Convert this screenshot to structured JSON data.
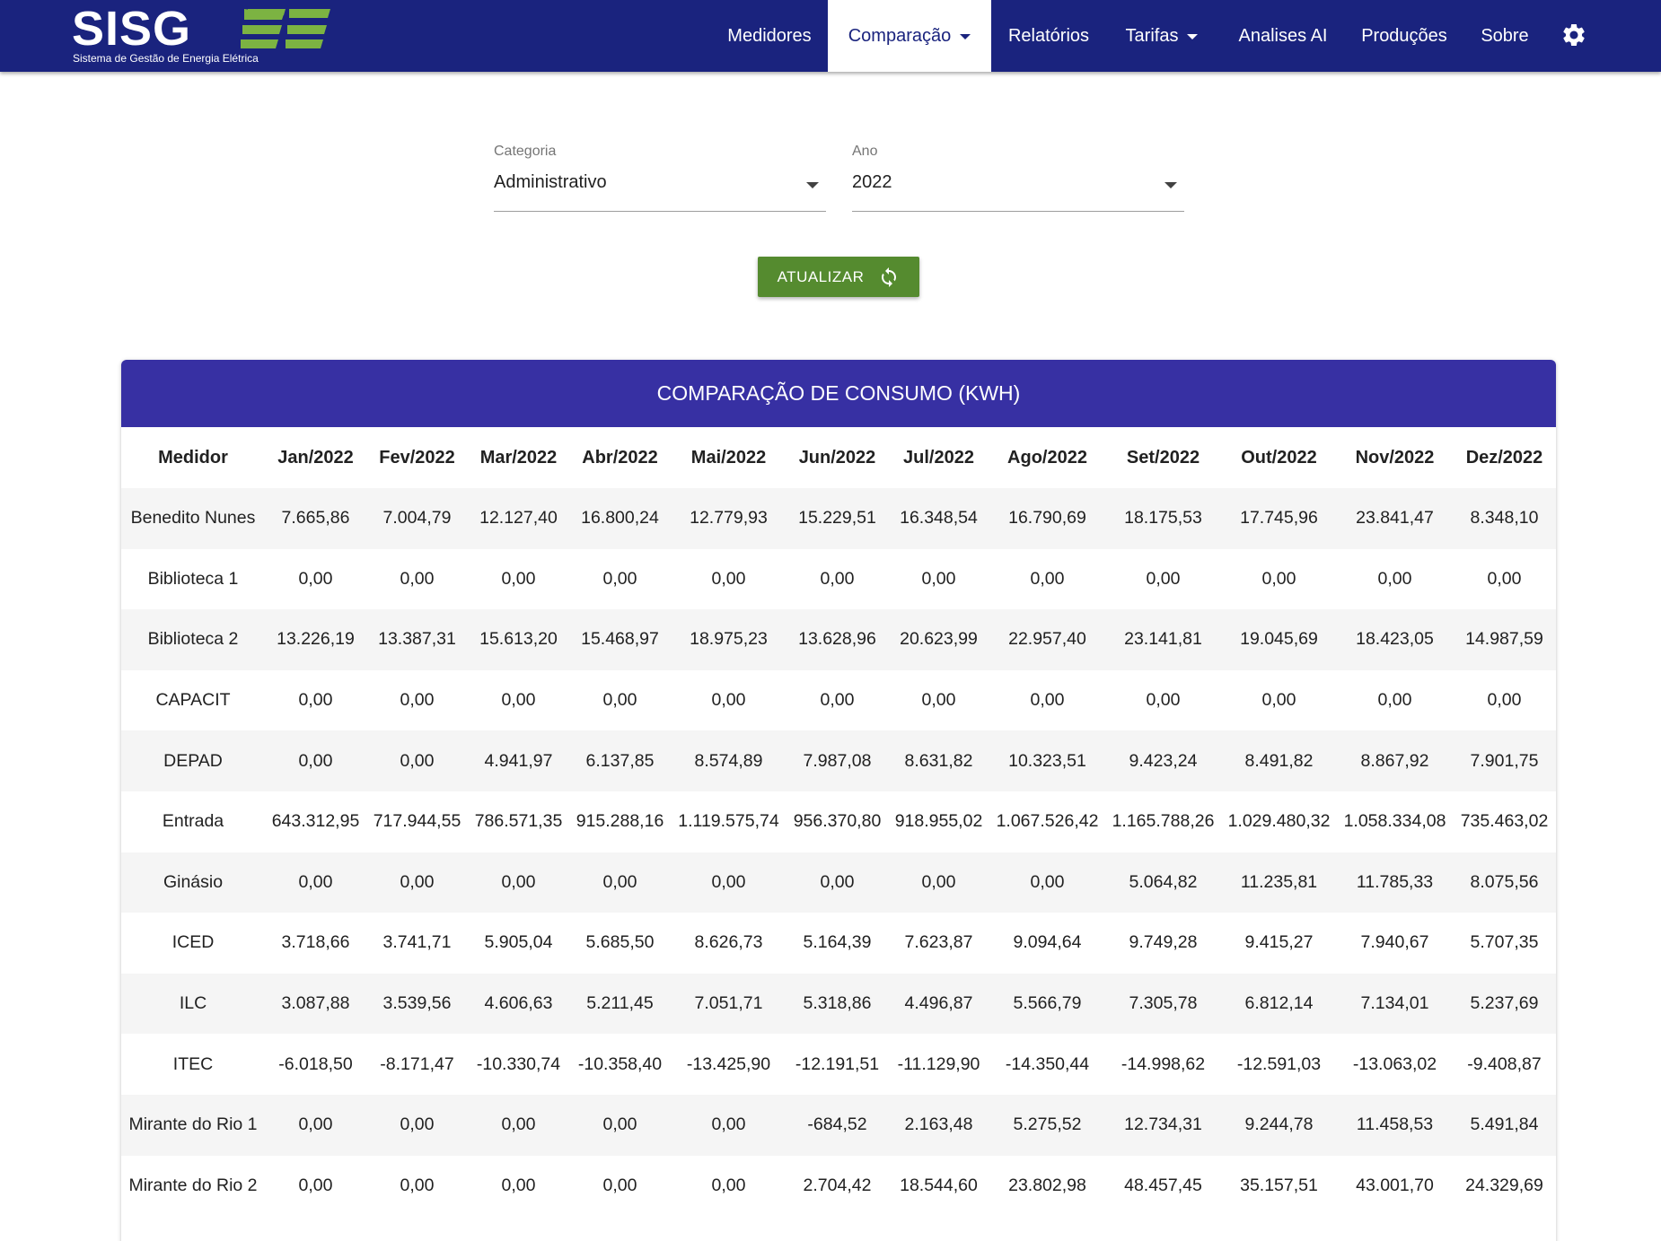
{
  "app": {
    "logo_text": "SISG",
    "logo_subtitle": "Sistema de Gestão de Energia Elétrica",
    "brand_color": "#1a237e",
    "accent_color": "#7cb342"
  },
  "nav": {
    "medidores": "Medidores",
    "comparacao": "Comparação",
    "relatorios": "Relatórios",
    "tarifas": "Tarifas",
    "analises": "Analises AI",
    "producoes": "Produções",
    "sobre": "Sobre",
    "settings_icon": "gear-icon"
  },
  "filters": {
    "categoria_label": "Categoria",
    "categoria_value": "Administrativo",
    "ano_label": "Ano",
    "ano_value": "2022"
  },
  "actions": {
    "update_label": "ATUALIZAR",
    "update_icon": "refresh-icon"
  },
  "table": {
    "title": "COMPARAÇÃO DE CONSUMO (KWH)",
    "columns": [
      "Medidor",
      "Jan/2022",
      "Fev/2022",
      "Mar/2022",
      "Abr/2022",
      "Mai/2022",
      "Jun/2022",
      "Jul/2022",
      "Ago/2022",
      "Set/2022",
      "Out/2022",
      "Nov/2022",
      "Dez/2022"
    ],
    "rows": [
      [
        "Benedito Nunes",
        "7.665,86",
        "7.004,79",
        "12.127,40",
        "16.800,24",
        "12.779,93",
        "15.229,51",
        "16.348,54",
        "16.790,69",
        "18.175,53",
        "17.745,96",
        "23.841,47",
        "8.348,10"
      ],
      [
        "Biblioteca 1",
        "0,00",
        "0,00",
        "0,00",
        "0,00",
        "0,00",
        "0,00",
        "0,00",
        "0,00",
        "0,00",
        "0,00",
        "0,00",
        "0,00"
      ],
      [
        "Biblioteca 2",
        "13.226,19",
        "13.387,31",
        "15.613,20",
        "15.468,97",
        "18.975,23",
        "13.628,96",
        "20.623,99",
        "22.957,40",
        "23.141,81",
        "19.045,69",
        "18.423,05",
        "14.987,59"
      ],
      [
        "CAPACIT",
        "0,00",
        "0,00",
        "0,00",
        "0,00",
        "0,00",
        "0,00",
        "0,00",
        "0,00",
        "0,00",
        "0,00",
        "0,00",
        "0,00"
      ],
      [
        "DEPAD",
        "0,00",
        "0,00",
        "4.941,97",
        "6.137,85",
        "8.574,89",
        "7.987,08",
        "8.631,82",
        "10.323,51",
        "9.423,24",
        "8.491,82",
        "8.867,92",
        "7.901,75"
      ],
      [
        "Entrada",
        "643.312,95",
        "717.944,55",
        "786.571,35",
        "915.288,16",
        "1.119.575,74",
        "956.370,80",
        "918.955,02",
        "1.067.526,42",
        "1.165.788,26",
        "1.029.480,32",
        "1.058.334,08",
        "735.463,02"
      ],
      [
        "Ginásio",
        "0,00",
        "0,00",
        "0,00",
        "0,00",
        "0,00",
        "0,00",
        "0,00",
        "0,00",
        "5.064,82",
        "11.235,81",
        "11.785,33",
        "8.075,56"
      ],
      [
        "ICED",
        "3.718,66",
        "3.741,71",
        "5.905,04",
        "5.685,50",
        "8.626,73",
        "5.164,39",
        "7.623,87",
        "9.094,64",
        "9.749,28",
        "9.415,27",
        "7.940,67",
        "5.707,35"
      ],
      [
        "ILC",
        "3.087,88",
        "3.539,56",
        "4.606,63",
        "5.211,45",
        "7.051,71",
        "5.318,86",
        "4.496,87",
        "5.566,79",
        "7.305,78",
        "6.812,14",
        "7.134,01",
        "5.237,69"
      ],
      [
        "ITEC",
        "-6.018,50",
        "-8.171,47",
        "-10.330,74",
        "-10.358,40",
        "-13.425,90",
        "-12.191,51",
        "-11.129,90",
        "-14.350,44",
        "-14.998,62",
        "-12.591,03",
        "-13.063,02",
        "-9.408,87"
      ],
      [
        "Mirante do Rio 1",
        "0,00",
        "0,00",
        "0,00",
        "0,00",
        "0,00",
        "-684,52",
        "2.163,48",
        "5.275,52",
        "12.734,31",
        "9.244,78",
        "11.458,53",
        "5.491,84"
      ],
      [
        "Mirante do Rio 2",
        "0,00",
        "0,00",
        "0,00",
        "0,00",
        "0,00",
        "2.704,42",
        "18.544,60",
        "23.802,98",
        "48.457,45",
        "35.157,51",
        "43.001,70",
        "24.329,69"
      ]
    ]
  }
}
